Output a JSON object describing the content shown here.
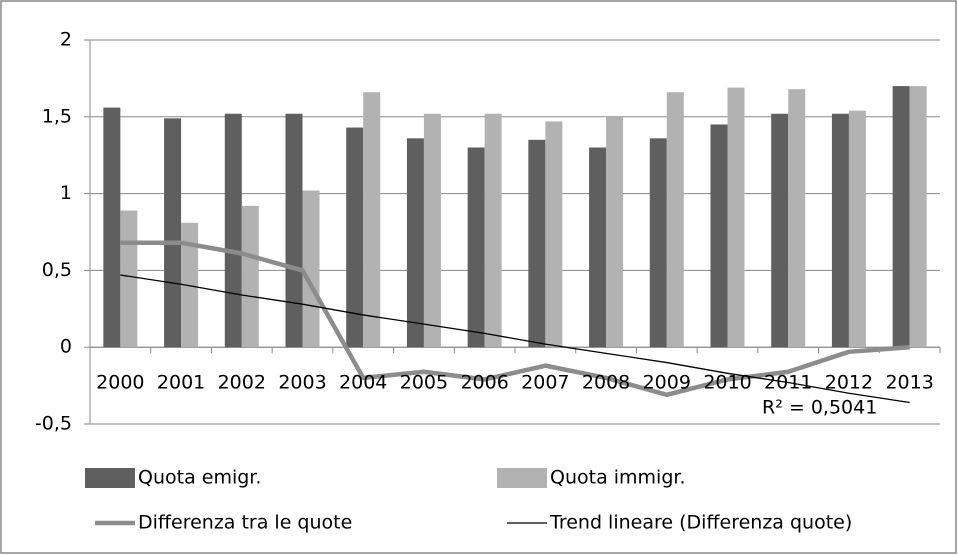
{
  "chart_data": {
    "type": "bar",
    "categories": [
      "2000",
      "2001",
      "2002",
      "2003",
      "2004",
      "2005",
      "2006",
      "2007",
      "2008",
      "2009",
      "2010",
      "2011",
      "2012",
      "2013"
    ],
    "series": [
      {
        "name": "Quota emigr.",
        "type": "bar",
        "color": "#5f5f5f",
        "values": [
          1.56,
          1.49,
          1.52,
          1.52,
          1.43,
          1.36,
          1.3,
          1.35,
          1.3,
          1.36,
          1.45,
          1.52,
          1.52,
          1.7
        ]
      },
      {
        "name": "Quota immigr.",
        "type": "bar",
        "color": "#b2b2b2",
        "values": [
          0.89,
          0.81,
          0.92,
          1.02,
          1.66,
          1.52,
          1.52,
          1.47,
          1.5,
          1.66,
          1.69,
          1.68,
          1.54,
          1.7
        ]
      },
      {
        "name": "Differenza tra le quote",
        "type": "line",
        "color": "#8c8c8c",
        "values": [
          0.68,
          0.68,
          0.61,
          0.5,
          -0.2,
          -0.16,
          -0.21,
          -0.12,
          -0.2,
          -0.31,
          -0.21,
          -0.16,
          -0.03,
          0.0
        ]
      },
      {
        "name": "Trend lineare (Differenza quote)",
        "type": "trend",
        "color": "#000000",
        "values": [
          0.47,
          0.41,
          0.34,
          0.28,
          0.21,
          0.15,
          0.09,
          0.02,
          -0.04,
          -0.1,
          -0.17,
          -0.23,
          -0.3,
          -0.36
        ]
      }
    ],
    "annotations": [
      "R² = 0,5041"
    ],
    "ylim": [
      -0.5,
      2
    ],
    "yticks": [
      {
        "value": -0.5,
        "label": "-0,5"
      },
      0,
      {
        "value": 0.5,
        "label": "0,5"
      },
      1,
      {
        "value": 1.5,
        "label": "1,5"
      },
      2
    ],
    "grid": true
  }
}
